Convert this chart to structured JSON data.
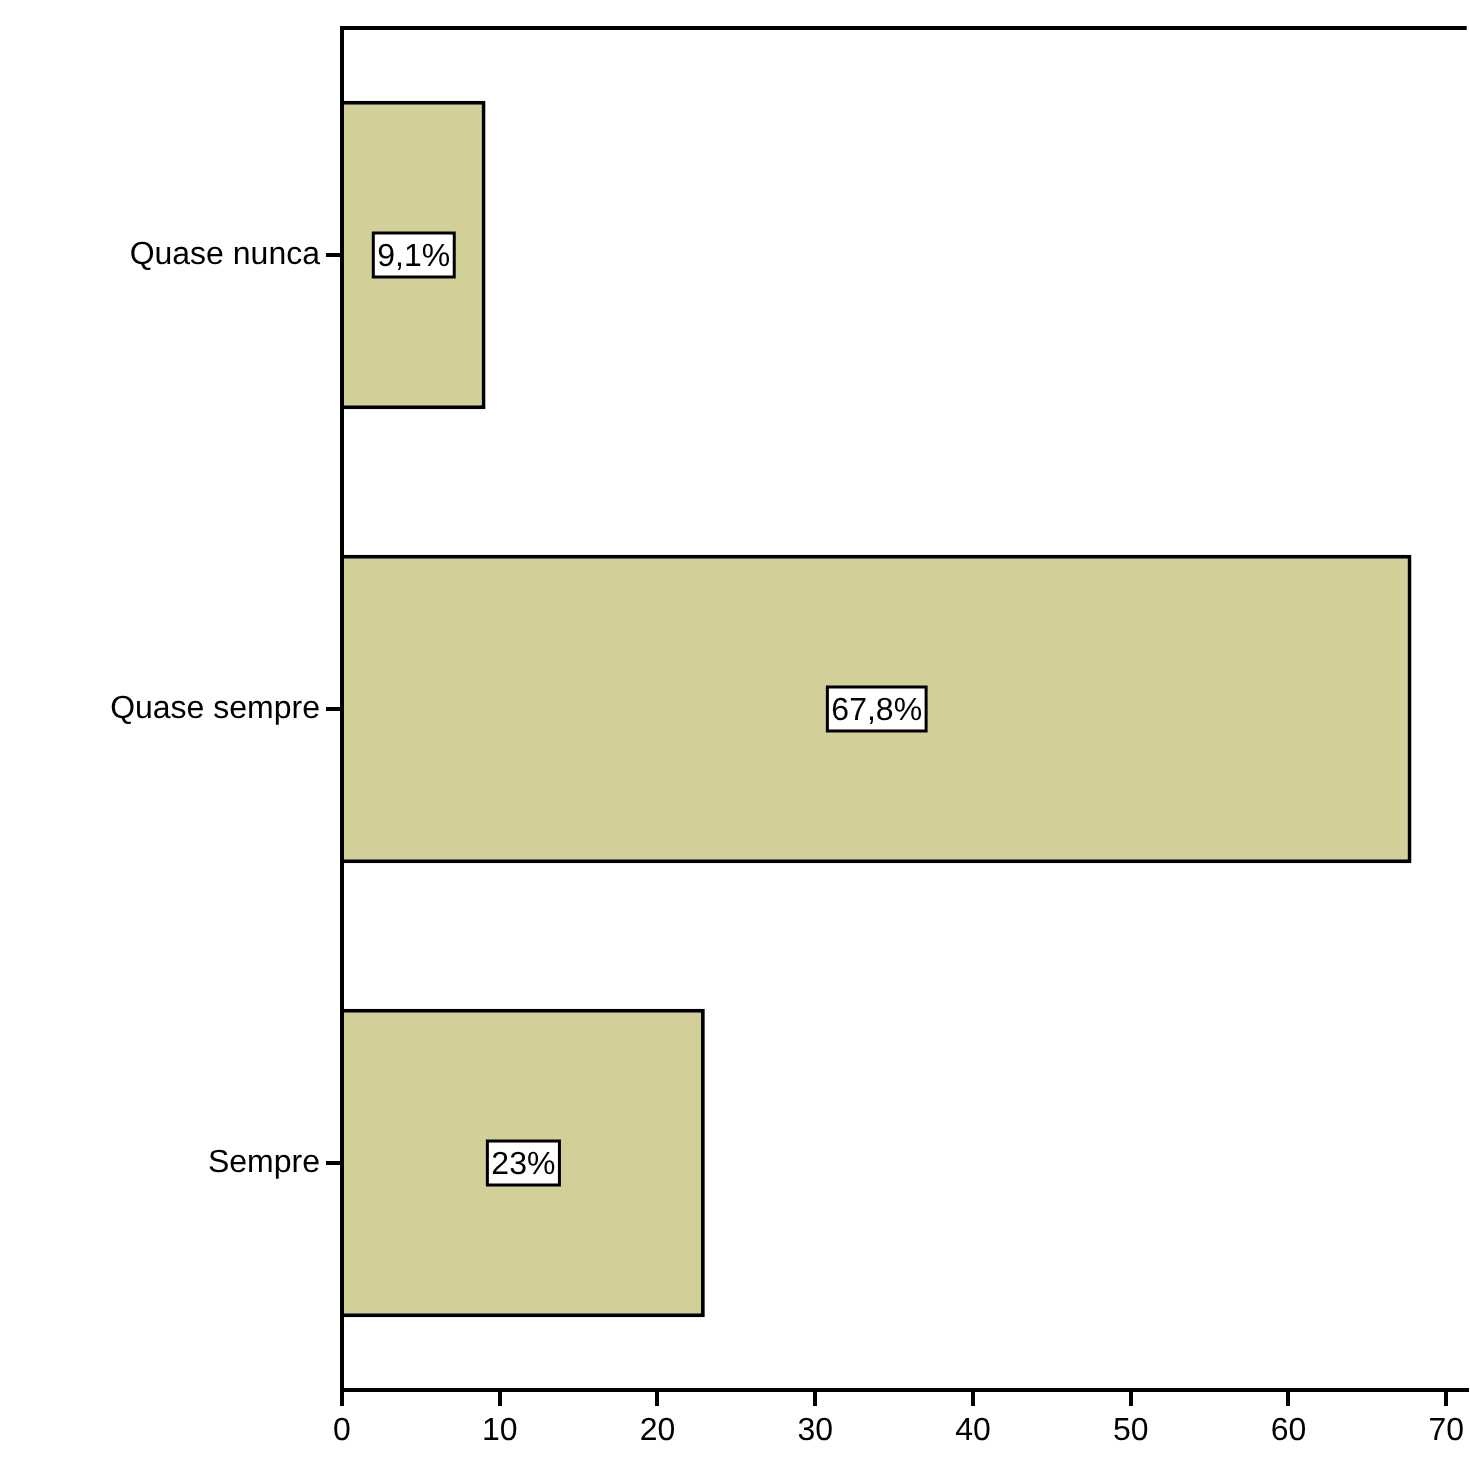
{
  "chart_data": {
    "type": "bar",
    "orientation": "horizontal",
    "categories": [
      "Quase nunca",
      "Quase sempre",
      "Sempre"
    ],
    "values": [
      9.1,
      67.8,
      23
    ],
    "value_labels": [
      "9,1%",
      "67,8%",
      "23%"
    ],
    "color": "#d3cf99",
    "xlim": [
      0,
      71.3
    ],
    "xticks": [
      0,
      10,
      20,
      30,
      40,
      50,
      60,
      70
    ],
    "grid": false,
    "legend": false
  }
}
